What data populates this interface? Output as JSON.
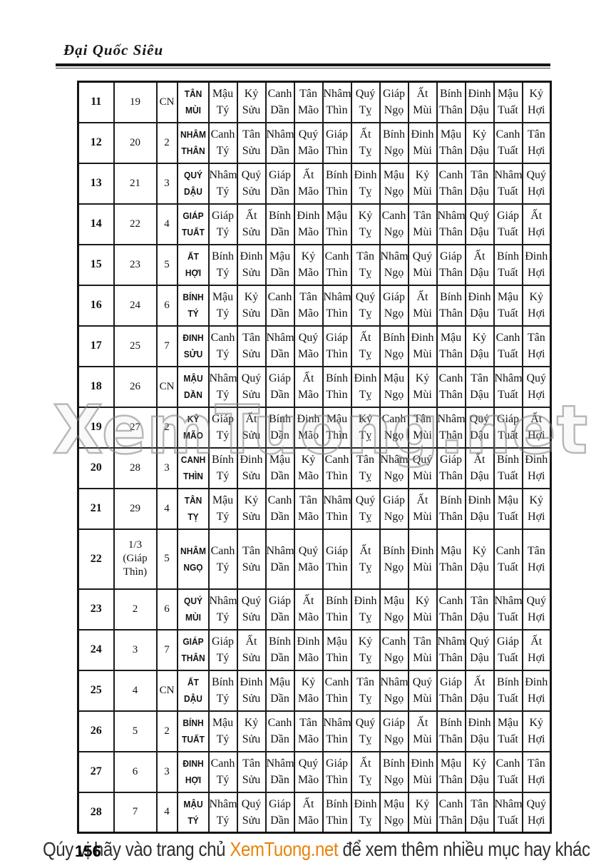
{
  "header": {
    "title": "Đại Quốc Siêu"
  },
  "watermark": "XemTuong.net",
  "footer": {
    "page_number": "156",
    "text_before": "Qúy vị hãy vào trang chủ ",
    "brand": "XemTuong.net",
    "text_after": " để xem thêm nhiều mục hay khác"
  },
  "table": {
    "branches": [
      "Tý",
      "Sửu",
      "Dần",
      "Mão",
      "Thìn",
      "Tỵ",
      "Ngọ",
      "Mùi",
      "Thân",
      "Dậu",
      "Tuất",
      "Hợi"
    ],
    "rows": [
      {
        "num": "11",
        "date": "19",
        "weekday": "CN",
        "name_top": "TÂN",
        "name_bottom": "MÙI",
        "stems": [
          "Mậu",
          "Kỷ",
          "Canh",
          "Tân",
          "Nhâm",
          "Quý",
          "Giáp",
          "Ất",
          "Bính",
          "Đinh",
          "Mậu",
          "Kỷ"
        ]
      },
      {
        "num": "12",
        "date": "20",
        "weekday": "2",
        "name_top": "NHÂM",
        "name_bottom": "THÂN",
        "stems": [
          "Canh",
          "Tân",
          "Nhâm",
          "Quý",
          "Giáp",
          "Ất",
          "Bính",
          "Đinh",
          "Mậu",
          "Kỷ",
          "Canh",
          "Tân"
        ]
      },
      {
        "num": "13",
        "date": "21",
        "weekday": "3",
        "name_top": "QUÝ",
        "name_bottom": "DẬU",
        "stems": [
          "Nhâm",
          "Quý",
          "Giáp",
          "Ất",
          "Bính",
          "Đinh",
          "Mậu",
          "Kỷ",
          "Canh",
          "Tân",
          "Nhâm",
          "Quý"
        ]
      },
      {
        "num": "14",
        "date": "22",
        "weekday": "4",
        "name_top": "GIÁP",
        "name_bottom": "TUẤT",
        "stems": [
          "Giáp",
          "Ất",
          "Bính",
          "Đinh",
          "Mậu",
          "Kỷ",
          "Canh",
          "Tân",
          "Nhâm",
          "Quý",
          "Giáp",
          "Ất"
        ]
      },
      {
        "num": "15",
        "date": "23",
        "weekday": "5",
        "name_top": "ẤT",
        "name_bottom": "HỢI",
        "stems": [
          "Bính",
          "Đinh",
          "Mậu",
          "Kỷ",
          "Canh",
          "Tân",
          "Nhâm",
          "Quý",
          "Giáp",
          "Ất",
          "Bính",
          "Đinh"
        ]
      },
      {
        "num": "16",
        "date": "24",
        "weekday": "6",
        "name_top": "BÍNH",
        "name_bottom": "TÝ",
        "stems": [
          "Mậu",
          "Kỷ",
          "Canh",
          "Tân",
          "Nhâm",
          "Quý",
          "Giáp",
          "Ất",
          "Bính",
          "Đinh",
          "Mậu",
          "Kỷ"
        ]
      },
      {
        "num": "17",
        "date": "25",
        "weekday": "7",
        "name_top": "ĐINH",
        "name_bottom": "SỬU",
        "stems": [
          "Canh",
          "Tân",
          "Nhâm",
          "Quý",
          "Giáp",
          "Ất",
          "Bính",
          "Đinh",
          "Mậu",
          "Kỷ",
          "Canh",
          "Tân"
        ]
      },
      {
        "num": "18",
        "date": "26",
        "weekday": "CN",
        "name_top": "MẬU",
        "name_bottom": "DẦN",
        "stems": [
          "Nhâm",
          "Quý",
          "Giáp",
          "Ất",
          "Bính",
          "Đinh",
          "Mậu",
          "Kỷ",
          "Canh",
          "Tân",
          "Nhâm",
          "Quý"
        ]
      },
      {
        "num": "19",
        "date": "27",
        "weekday": "2",
        "name_top": "KỶ",
        "name_bottom": "MÃO",
        "stems": [
          "Giáp",
          "Ất",
          "Bính",
          "Đinh",
          "Mậu",
          "Kỷ",
          "Canh",
          "Tân",
          "Nhâm",
          "Quý",
          "Giáp",
          "Ất"
        ]
      },
      {
        "num": "20",
        "date": "28",
        "weekday": "3",
        "name_top": "CANH",
        "name_bottom": "THÌN",
        "stems": [
          "Bính",
          "Đinh",
          "Mậu",
          "Kỷ",
          "Canh",
          "Tân",
          "Nhâm",
          "Quý",
          "Giáp",
          "Ất",
          "Bính",
          "Đinh"
        ]
      },
      {
        "num": "21",
        "date": "29",
        "weekday": "4",
        "name_top": "TÂN",
        "name_bottom": "TỴ",
        "stems": [
          "Mậu",
          "Kỷ",
          "Canh",
          "Tân",
          "Nhâm",
          "Quý",
          "Giáp",
          "Ất",
          "Bính",
          "Đinh",
          "Mậu",
          "Kỷ"
        ]
      },
      {
        "num": "22",
        "date": "1/3 (Giáp Thìn)",
        "weekday": "5",
        "name_top": "NHÂM",
        "name_bottom": "NGỌ",
        "tall": true,
        "stems": [
          "Canh",
          "Tân",
          "Nhâm",
          "Quý",
          "Giáp",
          "Ất",
          "Bính",
          "Đinh",
          "Mậu",
          "Kỷ",
          "Canh",
          "Tân"
        ]
      },
      {
        "num": "23",
        "date": "2",
        "weekday": "6",
        "name_top": "QUÝ",
        "name_bottom": "MÙI",
        "stems": [
          "Nhâm",
          "Quý",
          "Giáp",
          "Ất",
          "Bính",
          "Đinh",
          "Mậu",
          "Kỷ",
          "Canh",
          "Tân",
          "Nhâm",
          "Quý"
        ]
      },
      {
        "num": "24",
        "date": "3",
        "weekday": "7",
        "name_top": "GIÁP",
        "name_bottom": "THÂN",
        "stems": [
          "Giáp",
          "Ất",
          "Bính",
          "Đinh",
          "Mậu",
          "Kỷ",
          "Canh",
          "Tân",
          "Nhâm",
          "Quý",
          "Giáp",
          "Ất"
        ]
      },
      {
        "num": "25",
        "date": "4",
        "weekday": "CN",
        "name_top": "ẤT",
        "name_bottom": "DẬU",
        "stems": [
          "Bính",
          "Đinh",
          "Mậu",
          "Kỷ",
          "Canh",
          "Tân",
          "Nhâm",
          "Quý",
          "Giáp",
          "Ất",
          "Bính",
          "Đinh"
        ]
      },
      {
        "num": "26",
        "date": "5",
        "weekday": "2",
        "name_top": "BÍNH",
        "name_bottom": "TUẤT",
        "stems": [
          "Mậu",
          "Kỷ",
          "Canh",
          "Tân",
          "Nhâm",
          "Quý",
          "Giáp",
          "Ất",
          "Bính",
          "Đinh",
          "Mậu",
          "Kỷ"
        ]
      },
      {
        "num": "27",
        "date": "6",
        "weekday": "3",
        "name_top": "ĐINH",
        "name_bottom": "HỢI",
        "stems": [
          "Canh",
          "Tân",
          "Nhâm",
          "Quý",
          "Giáp",
          "Ất",
          "Bính",
          "Đinh",
          "Mậu",
          "Kỷ",
          "Canh",
          "Tân"
        ]
      },
      {
        "num": "28",
        "date": "7",
        "weekday": "4",
        "name_top": "MẬU",
        "name_bottom": "TÝ",
        "stems": [
          "Nhâm",
          "Quý",
          "Giáp",
          "Ất",
          "Bính",
          "Đinh",
          "Mậu",
          "Kỷ",
          "Canh",
          "Tân",
          "Nhâm",
          "Quý"
        ]
      }
    ]
  }
}
